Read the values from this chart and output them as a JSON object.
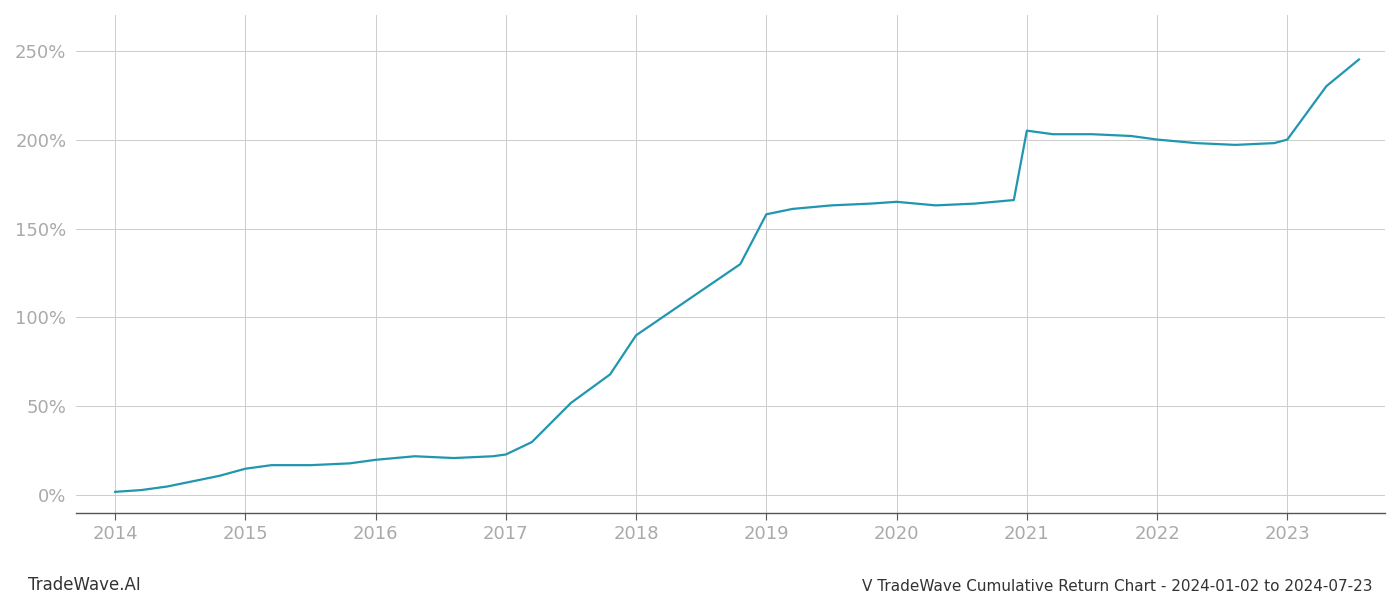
{
  "title": "V TradeWave Cumulative Return Chart - 2024-01-02 to 2024-07-23",
  "watermark": "TradeWave.AI",
  "line_color": "#2196b0",
  "background_color": "#ffffff",
  "grid_color": "#cccccc",
  "x_label_color": "#aaaaaa",
  "y_label_color": "#aaaaaa",
  "data_x": [
    2014.0,
    2014.2,
    2014.4,
    2014.6,
    2014.8,
    2015.0,
    2015.2,
    2015.5,
    2015.8,
    2016.0,
    2016.3,
    2016.6,
    2016.9,
    2017.0,
    2017.2,
    2017.5,
    2017.8,
    2018.0,
    2018.2,
    2018.5,
    2018.8,
    2019.0,
    2019.2,
    2019.5,
    2019.8,
    2020.0,
    2020.3,
    2020.6,
    2020.9,
    2021.0,
    2021.2,
    2021.5,
    2021.8,
    2022.0,
    2022.3,
    2022.6,
    2022.9,
    2023.0,
    2023.3,
    2023.55
  ],
  "data_y": [
    2,
    3,
    5,
    8,
    11,
    15,
    17,
    17,
    18,
    20,
    22,
    21,
    22,
    23,
    30,
    52,
    68,
    90,
    100,
    115,
    130,
    158,
    161,
    163,
    164,
    165,
    163,
    164,
    166,
    205,
    203,
    203,
    202,
    200,
    198,
    197,
    198,
    200,
    230,
    245
  ],
  "ylim": [
    -10,
    270
  ],
  "xlim": [
    2013.7,
    2023.75
  ],
  "yticks": [
    0,
    50,
    100,
    150,
    200,
    250
  ],
  "xticks": [
    2014,
    2015,
    2016,
    2017,
    2018,
    2019,
    2020,
    2021,
    2022,
    2023
  ],
  "line_width": 1.6,
  "title_fontsize": 11,
  "tick_fontsize": 13,
  "watermark_fontsize": 12
}
